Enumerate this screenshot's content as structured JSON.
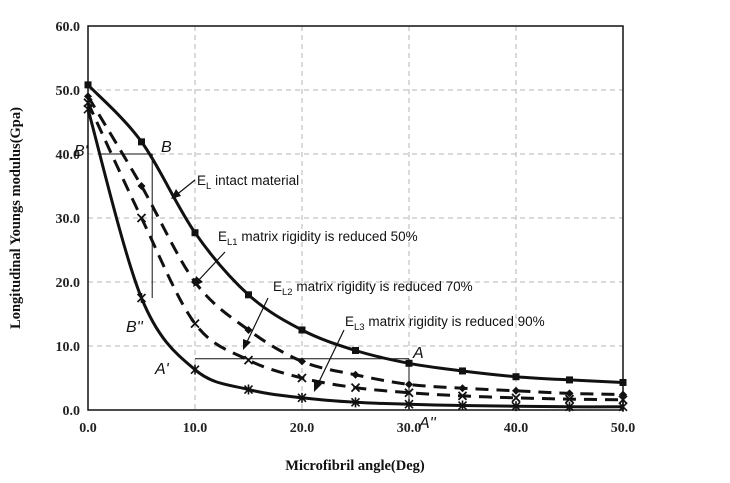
{
  "chart_data": {
    "type": "line",
    "title": "",
    "xlabel": "Microfibril angle(Deg)",
    "ylabel": "Longitudinal Youngs  modulus(Gpa)",
    "xlim": [
      0,
      50
    ],
    "ylim": [
      0,
      60
    ],
    "x_ticks": [
      "0.0",
      "10.0",
      "20.0",
      "30.0",
      "40.0",
      "50.0"
    ],
    "y_ticks": [
      "0.0",
      "10.0",
      "20.0",
      "30.0",
      "40.0",
      "50.0",
      "60.0"
    ],
    "grid": true,
    "series": [
      {
        "name": "E_L intact material",
        "style": "solid",
        "marker": "square",
        "x": [
          0,
          5,
          10,
          15,
          20,
          25,
          30,
          35,
          40,
          45,
          50
        ],
        "y": [
          50.8,
          41.9,
          27.7,
          18.0,
          12.5,
          9.3,
          7.3,
          6.1,
          5.2,
          4.7,
          4.3
        ]
      },
      {
        "name": "E_L1 matrix rigidity is reduced 50%",
        "style": "dashed",
        "marker": "diamond",
        "x": [
          0,
          5,
          10,
          15,
          20,
          25,
          30,
          35,
          40,
          45,
          50
        ],
        "y": [
          49.0,
          35.0,
          20.0,
          12.5,
          7.6,
          5.5,
          4.0,
          3.4,
          3.0,
          2.6,
          2.4
        ]
      },
      {
        "name": "E_L2 matrix rigidity is reduced 70%",
        "style": "dashed",
        "marker": "x",
        "x": [
          0,
          5,
          10,
          15,
          20,
          25,
          30,
          35,
          40,
          45,
          50
        ],
        "y": [
          48.0,
          30.0,
          13.5,
          7.8,
          5.0,
          3.5,
          2.7,
          2.2,
          1.9,
          1.7,
          1.6
        ]
      },
      {
        "name": "E_L3 matrix rigidity is reduced 90%",
        "style": "solid",
        "marker": "star",
        "x": [
          0,
          5,
          10,
          15,
          20,
          25,
          30,
          35,
          40,
          45,
          50
        ],
        "y": [
          47.0,
          17.5,
          6.3,
          3.2,
          1.9,
          1.2,
          0.9,
          0.7,
          0.6,
          0.5,
          0.5
        ]
      }
    ],
    "annotations": [
      {
        "main": "E",
        "sub": "L",
        "rest": " intact material"
      },
      {
        "main": "E",
        "sub": "L1",
        "rest": " matrix rigidity is reduced 50%"
      },
      {
        "main": "E",
        "sub": "L2",
        "rest": " matrix rigidity is reduced 70%"
      },
      {
        "main": "E",
        "sub": "L3",
        "rest": " matrix rigidity is reduced 90%"
      }
    ],
    "reference_lines": [
      {
        "from": [
          1,
          40
        ],
        "to": [
          6,
          40
        ]
      },
      {
        "from": [
          6,
          40
        ],
        "to": [
          6,
          17.5
        ]
      },
      {
        "from": [
          10,
          8
        ],
        "to": [
          30,
          8
        ]
      },
      {
        "from": [
          30,
          8
        ],
        "to": [
          30,
          0.9
        ]
      }
    ],
    "point_labels": [
      {
        "text": "B'",
        "x": 0,
        "y": 40
      },
      {
        "text": "B",
        "x": 7,
        "y": 41
      },
      {
        "text": "B''",
        "x": 4,
        "y": 12
      },
      {
        "text": "A'",
        "x": 7,
        "y": 6
      },
      {
        "text": "A",
        "x": 30,
        "y": 8
      },
      {
        "text": "A''",
        "x": 31,
        "y": -2
      }
    ]
  }
}
